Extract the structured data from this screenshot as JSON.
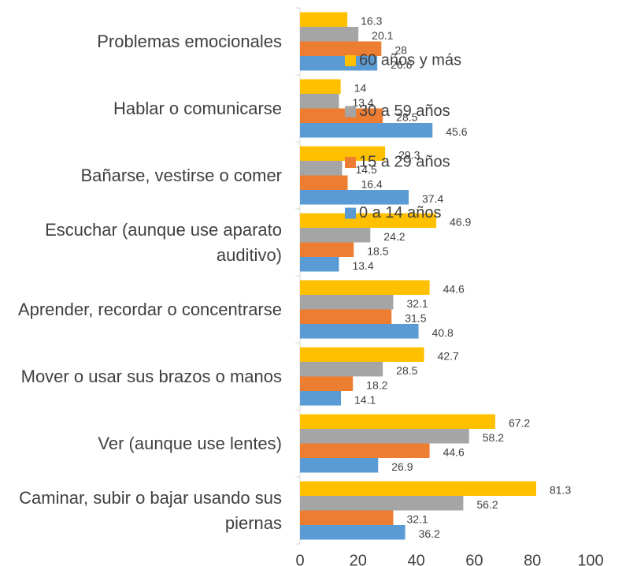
{
  "chart_data": {
    "type": "hbar",
    "categories": [
      "Problemas emocionales",
      "Hablar o comunicarse",
      "Bañarse, vestirse o comer",
      "Escuchar (aunque use aparato auditivo)",
      "Aprender, recordar o concentrarse",
      "Mover o usar sus brazos o manos",
      "Ver (aunque use lentes)",
      "Caminar, subir o bajar usando sus piernas"
    ],
    "series": [
      {
        "name": "60 años y más",
        "color": "#FFC000",
        "values": [
          16.3,
          14,
          29.3,
          46.9,
          44.6,
          42.7,
          67.2,
          81.3
        ]
      },
      {
        "name": "30 a 59 años",
        "color": "#A5A5A5",
        "values": [
          20.1,
          13.4,
          14.5,
          24.2,
          32.1,
          28.5,
          58.2,
          56.2
        ]
      },
      {
        "name": "15 a 29 años",
        "color": "#ED7D31",
        "values": [
          28,
          28.5,
          16.4,
          18.5,
          31.5,
          18.2,
          44.6,
          32.1
        ]
      },
      {
        "name": "0 a 14 años",
        "color": "#5B9BD5",
        "values": [
          26.6,
          45.6,
          37.4,
          13.4,
          40.8,
          14.1,
          26.9,
          36.2
        ]
      }
    ],
    "xlim": [
      0,
      100
    ],
    "xticks": [
      0,
      20,
      40,
      60,
      80,
      100
    ],
    "legend": "right"
  }
}
